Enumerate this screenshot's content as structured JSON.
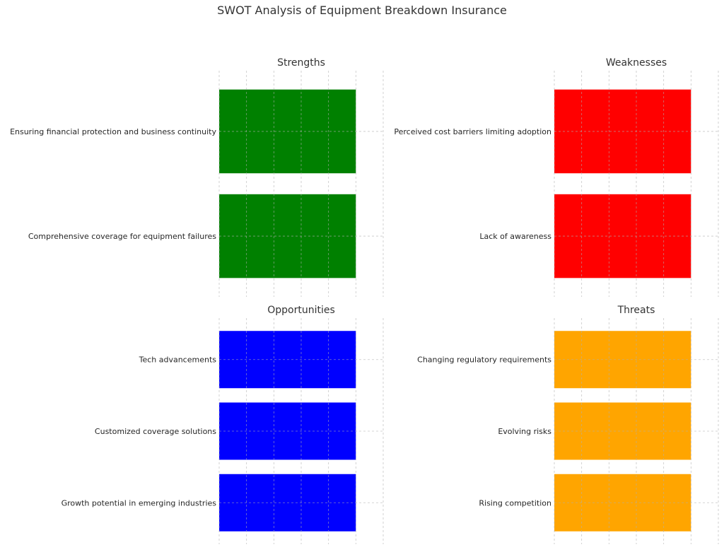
{
  "title": "SWOT Analysis of Equipment Breakdown Insurance",
  "chart_data": [
    {
      "type": "bar",
      "orientation": "horizontal",
      "title": "Strengths",
      "color": "#008000",
      "categories": [
        "Ensuring financial protection and business continuity",
        "Comprehensive coverage for equipment failures"
      ],
      "values": [
        1,
        1
      ],
      "xlim": [
        0,
        1.2
      ],
      "xticks": [
        0,
        0.2,
        0.4,
        0.6,
        0.8,
        1.0,
        1.2
      ],
      "xtick_labels_visible": false,
      "grid": true
    },
    {
      "type": "bar",
      "orientation": "horizontal",
      "title": "Weaknesses",
      "color": "#ff0000",
      "categories": [
        "Perceived cost barriers limiting adoption",
        "Lack of awareness"
      ],
      "values": [
        1,
        1
      ],
      "xlim": [
        0,
        1.2
      ],
      "xticks": [
        0,
        0.2,
        0.4,
        0.6,
        0.8,
        1.0,
        1.2
      ],
      "xtick_labels_visible": false,
      "grid": true
    },
    {
      "type": "bar",
      "orientation": "horizontal",
      "title": "Opportunities",
      "color": "#0000ff",
      "categories": [
        "Tech advancements",
        "Customized coverage solutions",
        "Growth potential in emerging industries"
      ],
      "values": [
        1,
        1,
        1
      ],
      "xlim": [
        0,
        1.2
      ],
      "xticks": [
        0,
        0.2,
        0.4,
        0.6,
        0.8,
        1.0,
        1.2
      ],
      "xtick_labels_visible": false,
      "grid": true
    },
    {
      "type": "bar",
      "orientation": "horizontal",
      "title": "Threats",
      "color": "#ffa500",
      "categories": [
        "Changing regulatory requirements",
        "Evolving risks",
        "Rising competition"
      ],
      "values": [
        1,
        1,
        1
      ],
      "xlim": [
        0,
        1.2
      ],
      "xticks": [
        0,
        0.2,
        0.4,
        0.6,
        0.8,
        1.0,
        1.2
      ],
      "xtick_labels_visible": false,
      "grid": true
    }
  ]
}
